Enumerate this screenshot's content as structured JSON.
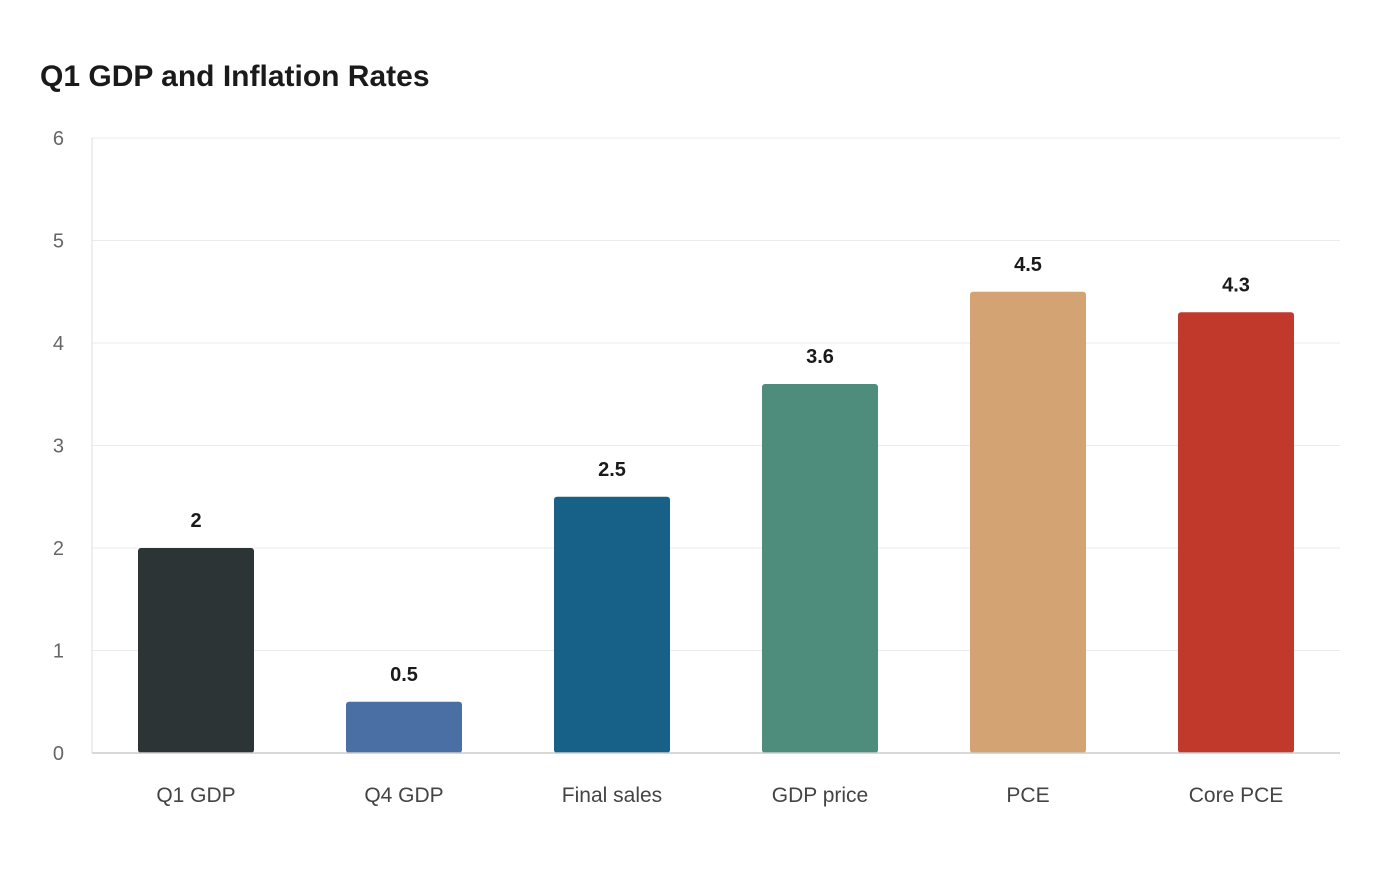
{
  "chart_data": {
    "type": "bar",
    "title": "Q1 GDP and Inflation Rates",
    "xlabel": "",
    "ylabel": "",
    "categories": [
      "Q1 GDP",
      "Q4 GDP",
      "Final sales",
      "GDP price",
      "PCE",
      "Core PCE"
    ],
    "values": [
      2,
      0.5,
      2.5,
      3.6,
      4.5,
      4.3
    ],
    "data_labels": [
      "2",
      "0.5",
      "2.5",
      "3.6",
      "4.5",
      "4.3"
    ],
    "colors": [
      "#2d3436",
      "#4a6fa5",
      "#176087",
      "#4e8d7c",
      "#d4a373",
      "#c0392b"
    ],
    "ylim": [
      0,
      6
    ],
    "yticks": [
      0,
      1,
      2,
      3,
      4,
      5,
      6
    ],
    "grid": true,
    "legend": "none"
  }
}
